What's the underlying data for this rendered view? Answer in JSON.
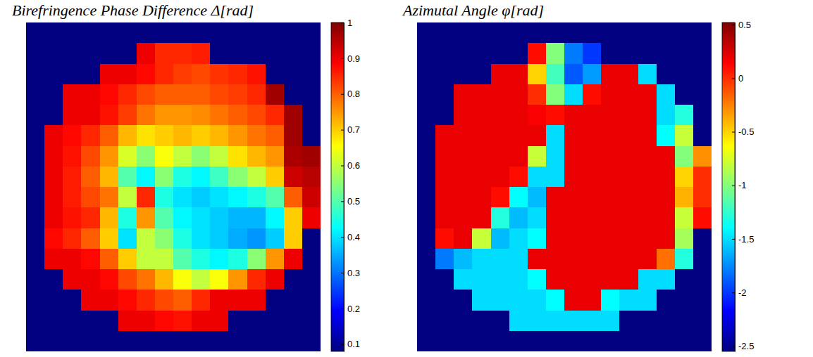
{
  "chart_data": [
    {
      "type": "heatmap",
      "title": "Birefringence Phase Difference Δ[rad]",
      "color": "jet",
      "clim": [
        0.08,
        1
      ],
      "cticks": [
        0.1,
        0.2,
        0.3,
        0.4,
        0.5,
        0.6,
        0.7,
        0.8,
        0.9,
        1
      ],
      "cells": [
        [
          0.08,
          0.08,
          0.08,
          0.08,
          0.08,
          0.08,
          0.08,
          0.08,
          0.08,
          0.08,
          0.08,
          0.08,
          0.08,
          0.08,
          0.08,
          0.08
        ],
        [
          0.08,
          0.08,
          0.08,
          0.08,
          0.08,
          0.08,
          0.9,
          0.85,
          0.85,
          0.86,
          0.08,
          0.08,
          0.08,
          0.08,
          0.08,
          0.08
        ],
        [
          0.08,
          0.08,
          0.08,
          0.08,
          0.9,
          0.9,
          0.88,
          0.85,
          0.83,
          0.82,
          0.84,
          0.85,
          0.87,
          0.08,
          0.08,
          0.08
        ],
        [
          0.08,
          0.08,
          0.9,
          0.9,
          0.88,
          0.85,
          0.82,
          0.8,
          0.8,
          0.8,
          0.82,
          0.83,
          0.85,
          0.97,
          0.08,
          0.08
        ],
        [
          0.08,
          0.08,
          0.9,
          0.9,
          0.87,
          0.83,
          0.78,
          0.75,
          0.75,
          0.76,
          0.78,
          0.8,
          0.82,
          0.85,
          0.97,
          0.08
        ],
        [
          0.08,
          0.9,
          0.88,
          0.85,
          0.8,
          0.72,
          0.68,
          0.7,
          0.72,
          0.7,
          0.72,
          0.75,
          0.78,
          0.8,
          0.97,
          0.08
        ],
        [
          0.08,
          0.9,
          0.87,
          0.82,
          0.75,
          0.62,
          0.55,
          0.65,
          0.6,
          0.55,
          0.6,
          0.68,
          0.72,
          0.75,
          0.96,
          0.97
        ],
        [
          0.08,
          0.9,
          0.86,
          0.8,
          0.72,
          0.5,
          0.42,
          0.55,
          0.45,
          0.42,
          0.48,
          0.55,
          0.6,
          0.7,
          0.93,
          0.95
        ],
        [
          0.08,
          0.9,
          0.86,
          0.82,
          0.78,
          0.6,
          0.85,
          0.45,
          0.4,
          0.38,
          0.4,
          0.42,
          0.45,
          0.5,
          0.8,
          0.93
        ],
        [
          0.08,
          0.9,
          0.87,
          0.85,
          0.72,
          0.45,
          0.75,
          0.5,
          0.42,
          0.4,
          0.38,
          0.36,
          0.36,
          0.42,
          0.7,
          0.9
        ],
        [
          0.08,
          0.88,
          0.85,
          0.8,
          0.7,
          0.4,
          0.6,
          0.55,
          0.45,
          0.4,
          0.38,
          0.35,
          0.33,
          0.38,
          0.7,
          0.08
        ],
        [
          0.08,
          0.9,
          0.9,
          0.88,
          0.8,
          0.7,
          0.6,
          0.6,
          0.5,
          0.45,
          0.42,
          0.45,
          0.55,
          0.75,
          0.9,
          0.08
        ],
        [
          0.08,
          0.08,
          0.9,
          0.9,
          0.88,
          0.82,
          0.78,
          0.72,
          0.65,
          0.6,
          0.65,
          0.75,
          0.85,
          0.9,
          0.08,
          0.08
        ],
        [
          0.08,
          0.08,
          0.08,
          0.9,
          0.9,
          0.88,
          0.85,
          0.82,
          0.8,
          0.85,
          0.9,
          0.9,
          0.9,
          0.08,
          0.08,
          0.08
        ],
        [
          0.08,
          0.08,
          0.08,
          0.08,
          0.08,
          0.9,
          0.9,
          0.88,
          0.87,
          0.9,
          0.9,
          0.08,
          0.08,
          0.08,
          0.08,
          0.08
        ],
        [
          0.08,
          0.08,
          0.08,
          0.08,
          0.08,
          0.08,
          0.08,
          0.08,
          0.08,
          0.08,
          0.08,
          0.08,
          0.08,
          0.08,
          0.08,
          0.08
        ]
      ]
    },
    {
      "type": "heatmap",
      "title": "Azimutal Angle φ[rad]",
      "color": "jet",
      "clim": [
        -2.55,
        0.52
      ],
      "cticks": [
        0.5,
        0,
        -0.5,
        -1,
        -1.5,
        -2,
        -2.5
      ],
      "cells": [
        [
          -2.55,
          -2.55,
          -2.55,
          -2.55,
          -2.55,
          -2.55,
          -2.55,
          -2.55,
          -2.55,
          -2.55,
          -2.55,
          -2.55,
          -2.55,
          -2.55,
          -2.55,
          -2.55
        ],
        [
          -2.55,
          -2.55,
          -2.55,
          -2.55,
          -2.55,
          -2.55,
          0.1,
          -1.0,
          -1.8,
          -2.0,
          -2.55,
          -2.55,
          -2.55,
          -2.55,
          -2.55,
          -2.55
        ],
        [
          -2.55,
          -2.55,
          -2.55,
          -2.55,
          0.2,
          0.2,
          -0.5,
          -1.2,
          -1.9,
          -1.7,
          0.2,
          0.2,
          -1.5,
          -2.55,
          -2.55,
          -2.55
        ],
        [
          -2.55,
          -2.55,
          0.2,
          0.2,
          0.2,
          0.2,
          0.0,
          -1.0,
          -1.5,
          0.1,
          0.2,
          0.2,
          0.2,
          -1.5,
          -2.55,
          -2.55
        ],
        [
          -2.55,
          -2.55,
          0.2,
          0.2,
          0.2,
          0.2,
          0.15,
          0.1,
          0.2,
          0.2,
          0.2,
          0.2,
          0.2,
          -1.5,
          -1.3,
          -2.55
        ],
        [
          -2.55,
          0.2,
          0.2,
          0.2,
          0.2,
          0.2,
          0.2,
          -1.5,
          0.2,
          0.2,
          0.2,
          0.2,
          0.2,
          -1.4,
          -0.8,
          -2.55
        ],
        [
          -2.55,
          0.2,
          0.2,
          0.2,
          0.2,
          0.2,
          -0.8,
          -1.5,
          0.2,
          0.2,
          0.2,
          0.2,
          0.2,
          0.2,
          -1.0,
          -0.3
        ],
        [
          -2.55,
          0.2,
          0.2,
          0.2,
          0.2,
          0.1,
          -1.5,
          -1.5,
          0.2,
          0.2,
          0.2,
          0.2,
          0.2,
          0.2,
          -0.5,
          0.0
        ],
        [
          -2.55,
          0.2,
          0.2,
          0.2,
          0.1,
          -1.4,
          -1.6,
          0.2,
          0.2,
          0.2,
          0.2,
          0.2,
          0.2,
          0.2,
          -0.4,
          0.0
        ],
        [
          -2.55,
          0.2,
          0.2,
          0.2,
          -1.3,
          -1.6,
          -1.5,
          0.2,
          0.2,
          0.2,
          0.2,
          0.2,
          0.2,
          0.2,
          -0.8,
          0.1
        ],
        [
          -2.55,
          0.1,
          0.2,
          -0.8,
          -1.6,
          -1.5,
          -1.4,
          0.2,
          0.2,
          0.2,
          0.2,
          0.2,
          0.2,
          0.2,
          -0.9,
          -2.55
        ],
        [
          -2.55,
          -1.8,
          -1.6,
          -1.5,
          -1.5,
          -1.5,
          0.2,
          0.2,
          0.2,
          0.2,
          0.2,
          0.2,
          0.2,
          -0.2,
          -1.3,
          -2.55
        ],
        [
          -2.55,
          -2.55,
          -1.5,
          -1.5,
          -1.5,
          -1.5,
          -1.4,
          0.2,
          0.2,
          0.2,
          0.2,
          0.2,
          -1.5,
          -1.5,
          -2.55,
          -2.55
        ],
        [
          -2.55,
          -2.55,
          -2.55,
          -1.5,
          -1.5,
          -1.5,
          -1.5,
          -1.4,
          0.2,
          0.2,
          -1.4,
          -1.5,
          -1.5,
          -2.55,
          -2.55,
          -2.55
        ],
        [
          -2.55,
          -2.55,
          -2.55,
          -2.55,
          -2.55,
          -1.5,
          -1.5,
          -1.5,
          -1.5,
          -1.5,
          -1.5,
          -2.55,
          -2.55,
          -2.55,
          -2.55,
          -2.55
        ],
        [
          -2.55,
          -2.55,
          -2.55,
          -2.55,
          -2.55,
          -2.55,
          -2.55,
          -2.55,
          -2.55,
          -2.55,
          -2.55,
          -2.55,
          -2.55,
          -2.55,
          -2.55,
          -2.55
        ]
      ]
    }
  ]
}
